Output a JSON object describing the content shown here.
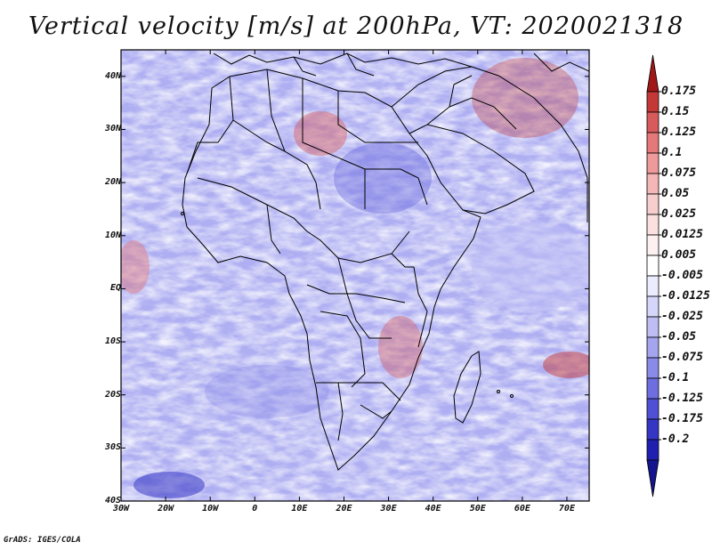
{
  "title": "Vertical velocity [m/s] at 200hPa, VT: 2020021318",
  "credit": "GrADS: IGES/COLA",
  "map": {
    "lon_range": [
      -30,
      75
    ],
    "lat_range": [
      -40,
      45
    ],
    "lat_labels": [
      "40N",
      "30N",
      "20N",
      "10N",
      "EQ",
      "10S",
      "20S",
      "30S",
      "40S"
    ],
    "lon_labels": [
      "30W",
      "20W",
      "10W",
      "0",
      "10E",
      "20E",
      "30E",
      "40E",
      "50E",
      "60E",
      "70E"
    ]
  },
  "colorbar": {
    "labels": [
      "0.175",
      "0.15",
      "0.125",
      "0.1",
      "0.075",
      "0.05",
      "0.025",
      "0.0125",
      "0.005",
      "-0.005",
      "-0.0125",
      "-0.025",
      "-0.05",
      "-0.075",
      "-0.1",
      "-0.125",
      "-0.175",
      "-0.2"
    ],
    "colors": [
      "#a01818",
      "#c43838",
      "#d85a5a",
      "#e57878",
      "#ee9a9a",
      "#f4b6b6",
      "#f8cdcd",
      "#fbe0e0",
      "#fdf0f0",
      "#ffffff",
      "#ececff",
      "#d6d6fb",
      "#bebef5",
      "#a4a4ef",
      "#8a8ae8",
      "#6e6ee0",
      "#5050d4",
      "#3636c4",
      "#2020b0",
      "#14148e"
    ]
  }
}
